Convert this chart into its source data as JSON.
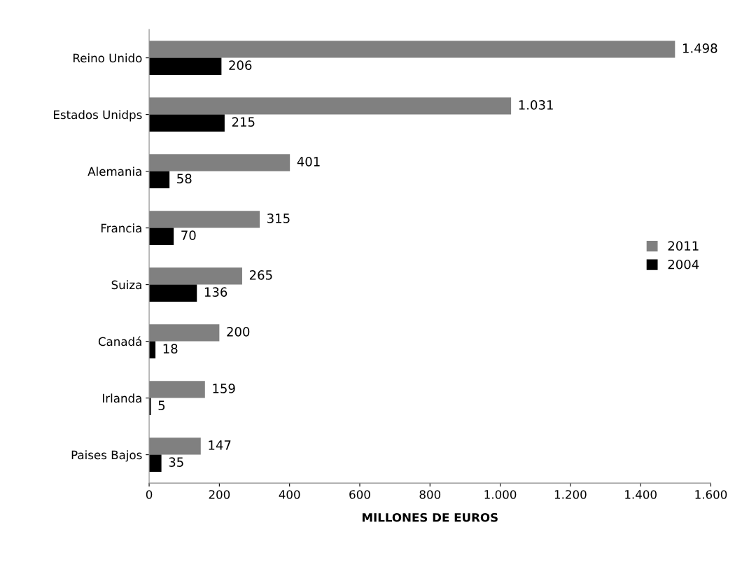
{
  "chart_data": {
    "type": "bar",
    "orientation": "horizontal",
    "xlabel": "MILLONES DE EUROS",
    "categories": [
      "Reino Unido",
      "Estados Unidps",
      "Alemania",
      "Francia",
      "Suiza",
      "Canadá",
      "Irlanda",
      "Paises Bajos"
    ],
    "series": [
      {
        "name": "2011",
        "color": "#808080",
        "values": [
          1498,
          1031,
          401,
          315,
          265,
          200,
          159,
          147
        ],
        "value_labels": [
          "1.498",
          "1.031",
          "401",
          "315",
          "265",
          "200",
          "159",
          "147"
        ]
      },
      {
        "name": "2004",
        "color": "#000000",
        "values": [
          206,
          215,
          58,
          70,
          136,
          18,
          5,
          35
        ],
        "value_labels": [
          "206",
          "215",
          "58",
          "70",
          "136",
          "18",
          "5",
          "35"
        ]
      }
    ],
    "xlim": [
      0,
      1600
    ],
    "xticks": [
      0,
      200,
      400,
      600,
      800,
      {
        "value": 1000,
        "label": "1.000"
      },
      {
        "value": 1200,
        "label": "1.200"
      },
      {
        "value": 1400,
        "label": "1.400"
      },
      {
        "value": 1600,
        "label": "1.600"
      }
    ],
    "grid": false,
    "legend": "right"
  }
}
